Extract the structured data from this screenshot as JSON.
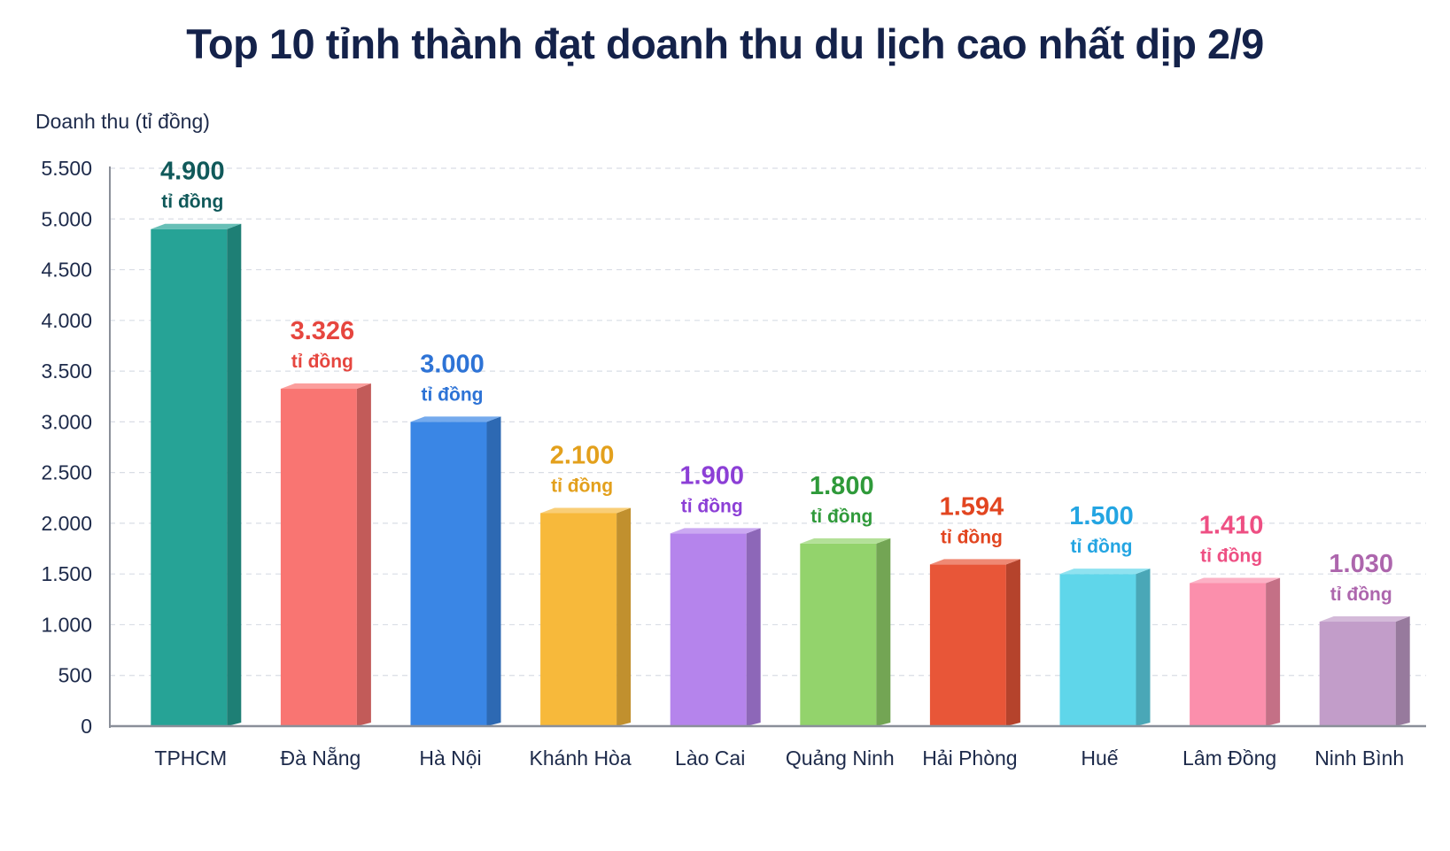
{
  "chart_data": {
    "type": "bar",
    "title": "Top 10 tỉnh thành đạt doanh thu du lịch cao nhất dịp 2/9",
    "ylabel": "Doanh thu (tỉ đồng)",
    "xlabel": "",
    "ylim": [
      0,
      5500
    ],
    "grid": true,
    "yticks": [
      {
        "value": 0,
        "label": "0"
      },
      {
        "value": 500,
        "label": "500"
      },
      {
        "value": 1000,
        "label": "1.000"
      },
      {
        "value": 1500,
        "label": "1.500"
      },
      {
        "value": 2000,
        "label": "2.000"
      },
      {
        "value": 2500,
        "label": "2.500"
      },
      {
        "value": 3000,
        "label": "3.000"
      },
      {
        "value": 3500,
        "label": "3.500"
      },
      {
        "value": 4000,
        "label": "4.000"
      },
      {
        "value": 4500,
        "label": "4.500"
      },
      {
        "value": 5000,
        "label": "5.000"
      },
      {
        "value": 5500,
        "label": "5.500"
      }
    ],
    "categories": [
      "TPHCM",
      "Đà Nẵng",
      "Hà Nội",
      "Khánh Hòa",
      "Lào Cai",
      "Quảng Ninh",
      "Hải Phòng",
      "Huế",
      "Lâm Đồng",
      "Ninh Bình"
    ],
    "values": [
      4900,
      3326,
      3000,
      2100,
      1900,
      1800,
      1594,
      1500,
      1410,
      1030
    ],
    "value_labels": [
      "4.900",
      "3.326",
      "3.000",
      "2.100",
      "1.900",
      "1.800",
      "1.594",
      "1.500",
      "1.410",
      "1.030"
    ],
    "unit_label": "tỉ đồng",
    "colors": [
      "#26a396",
      "#f97572",
      "#3a86e5",
      "#f7b93b",
      "#b584ec",
      "#93d36c",
      "#e85638",
      "#5fd6ea",
      "#fb8fac",
      "#c29dc9"
    ],
    "label_colors": [
      "#10595a",
      "#e6463f",
      "#2d73d6",
      "#e3a01c",
      "#8c3fd6",
      "#2f9a3a",
      "#e24520",
      "#24a5e2",
      "#ee4f83",
      "#ad66ad"
    ]
  }
}
